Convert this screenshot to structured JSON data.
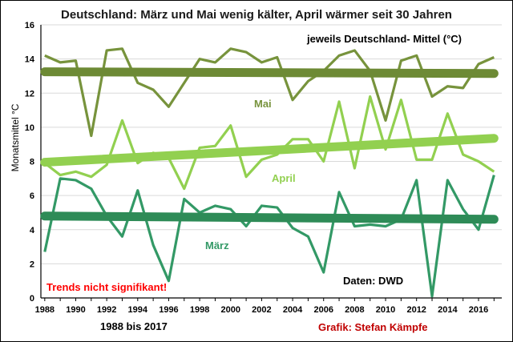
{
  "chart_data": {
    "type": "line",
    "title": "Deutschland: März und Mai wenig kälter, April wärmer seit 30 Jahren",
    "ylabel": "Monatsmittel °C",
    "xlabel": "",
    "ylim": [
      0,
      16
    ],
    "yticks": [
      0,
      2,
      4,
      6,
      8,
      10,
      12,
      14,
      16
    ],
    "xlim": [
      1987.75,
      2017.5
    ],
    "xticks": [
      1988,
      1990,
      1992,
      1994,
      1996,
      1998,
      2000,
      2002,
      2004,
      2006,
      2008,
      2010,
      2012,
      2014,
      2016
    ],
    "grid": "horizontal",
    "x": [
      1988,
      1989,
      1990,
      1991,
      1992,
      1993,
      1994,
      1995,
      1996,
      1997,
      1998,
      1999,
      2000,
      2001,
      2002,
      2003,
      2004,
      2005,
      2006,
      2007,
      2008,
      2009,
      2010,
      2011,
      2012,
      2013,
      2014,
      2015,
      2016,
      2017
    ],
    "series": [
      {
        "name": "Mai",
        "color": "#77933c",
        "trend_color": "#6d8a35",
        "values": [
          14.2,
          13.8,
          13.9,
          9.5,
          14.5,
          14.6,
          12.6,
          12.2,
          11.2,
          12.6,
          14.0,
          13.8,
          14.6,
          14.4,
          13.8,
          14.1,
          11.6,
          12.7,
          13.3,
          14.2,
          14.5,
          13.3,
          10.4,
          13.9,
          14.2,
          11.8,
          12.4,
          12.3,
          13.7,
          14.1
        ],
        "trend": [
          13.25,
          13.15
        ]
      },
      {
        "name": "April",
        "color": "#92d050",
        "trend_color": "#92d050",
        "values": [
          7.9,
          7.2,
          7.4,
          7.1,
          7.8,
          10.4,
          7.9,
          8.5,
          8.2,
          6.4,
          8.8,
          8.9,
          10.1,
          7.1,
          8.1,
          8.4,
          9.3,
          9.3,
          8.0,
          11.5,
          7.6,
          11.8,
          8.7,
          11.6,
          8.1,
          8.1,
          10.8,
          8.4,
          8.0,
          7.4
        ],
        "trend": [
          7.95,
          9.35
        ]
      },
      {
        "name": "März",
        "color": "#339966",
        "trend_color": "#2e8b57",
        "values": [
          2.7,
          7.0,
          6.9,
          6.4,
          4.8,
          3.6,
          6.3,
          3.1,
          1.0,
          5.8,
          5.0,
          5.4,
          5.2,
          4.2,
          5.4,
          5.3,
          4.1,
          3.6,
          1.5,
          6.2,
          4.2,
          4.3,
          4.2,
          4.6,
          6.9,
          0.1,
          6.9,
          5.2,
          4.0,
          7.2
        ]
      }
    ]
  },
  "annotations": {
    "mai_label": "Mai",
    "april_label": "April",
    "maerz_label": "März",
    "region_note": "jeweils Deutschland- Mittel (°C)",
    "trends_note": "Trends nicht signifikant!",
    "source_note": "Daten: DWD",
    "period_note": "1988 bis 2017",
    "credit": "Grafik: Stefan Kämpfe"
  },
  "colors": {
    "mai": "#77933c",
    "april": "#92d050",
    "maerz": "#339966",
    "trends_note": "#ff0000",
    "credit": "#c00000"
  }
}
